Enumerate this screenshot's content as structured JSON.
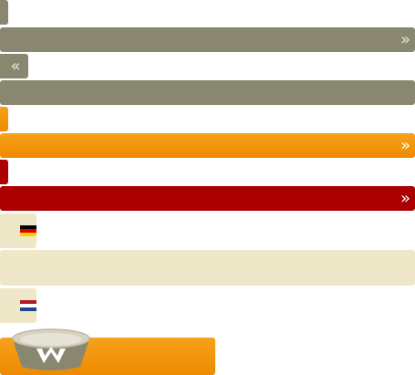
{
  "menu": {
    "row1": {
      "icon": "chevron-double-right-icon",
      "glyph": "»"
    },
    "row2": {
      "icon": "chevron-double-left-icon",
      "glyph": "«"
    },
    "row3": {
      "icon": "chevron-double-right-icon",
      "glyph": "»"
    },
    "row4": {
      "icon": "chevron-double-right-icon",
      "glyph": "»"
    }
  },
  "languages": {
    "items": [
      {
        "icon": "german-flag-icon",
        "colors": [
          "#000000",
          "#dd0000",
          "#ffce00"
        ]
      },
      {
        "icon": "dutch-flag-icon",
        "colors": [
          "#ae1c28",
          "#ffffff",
          "#21468b"
        ]
      }
    ]
  },
  "brand": {
    "icon": "pet-bowl-logo-icon"
  },
  "colors": {
    "olive": "#8a8770",
    "orange": "#f29400",
    "red": "#aa0000",
    "cream": "#efe8c8"
  }
}
